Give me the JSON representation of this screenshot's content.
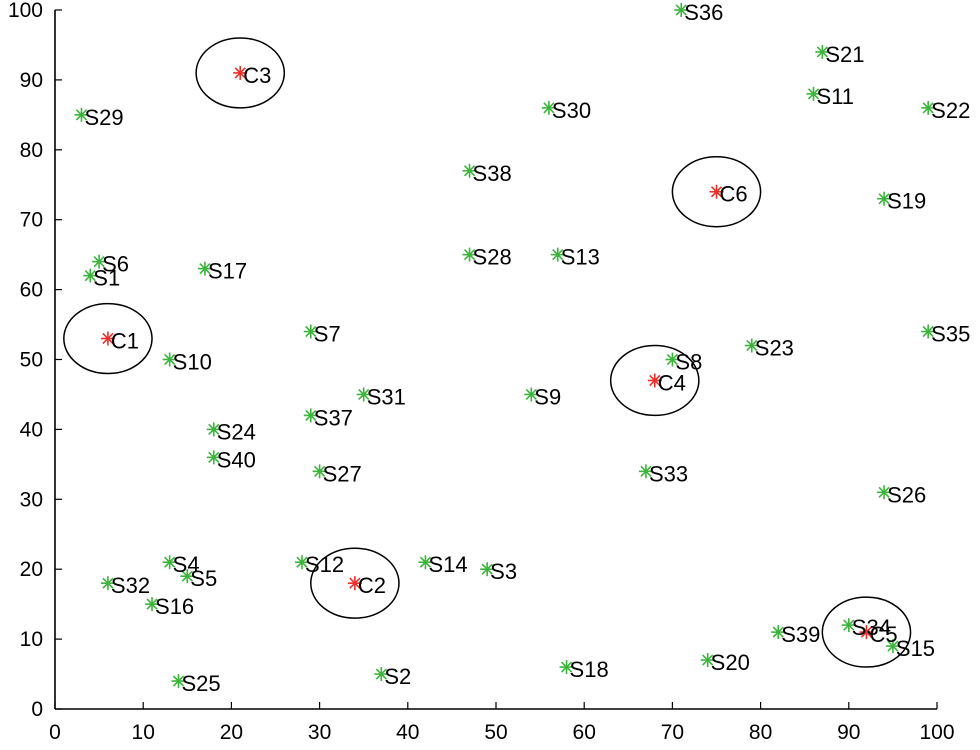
{
  "chart_data": {
    "type": "scatter",
    "title": "",
    "xlabel": "",
    "ylabel": "",
    "xlim": [
      0,
      100
    ],
    "ylim": [
      0,
      100
    ],
    "grid": false,
    "x_ticks": [
      0,
      10,
      20,
      30,
      40,
      50,
      60,
      70,
      80,
      90,
      100
    ],
    "y_ticks": [
      0,
      10,
      20,
      30,
      40,
      50,
      60,
      70,
      80,
      90,
      100
    ],
    "colors": {
      "sensor": "#3cb43c",
      "cluster": "#e8302a",
      "ring": "#000000"
    },
    "series": [
      {
        "name": "sensors",
        "marker": "asterisk",
        "color": "#3cb43c",
        "points": [
          {
            "label": "S1",
            "x": 4,
            "y": 62
          },
          {
            "label": "S2",
            "x": 37,
            "y": 5
          },
          {
            "label": "S3",
            "x": 49,
            "y": 20
          },
          {
            "label": "S4",
            "x": 13,
            "y": 21
          },
          {
            "label": "S5",
            "x": 15,
            "y": 19
          },
          {
            "label": "S6",
            "x": 5,
            "y": 64
          },
          {
            "label": "S7",
            "x": 29,
            "y": 54
          },
          {
            "label": "S8",
            "x": 70,
            "y": 50
          },
          {
            "label": "S9",
            "x": 54,
            "y": 45
          },
          {
            "label": "S10",
            "x": 13,
            "y": 50
          },
          {
            "label": "S11",
            "x": 86,
            "y": 88
          },
          {
            "label": "S12",
            "x": 28,
            "y": 21
          },
          {
            "label": "S13",
            "x": 57,
            "y": 65
          },
          {
            "label": "S14",
            "x": 42,
            "y": 21
          },
          {
            "label": "S15",
            "x": 95,
            "y": 9
          },
          {
            "label": "S16",
            "x": 11,
            "y": 15
          },
          {
            "label": "S17",
            "x": 17,
            "y": 63
          },
          {
            "label": "S18",
            "x": 58,
            "y": 6
          },
          {
            "label": "S19",
            "x": 94,
            "y": 73
          },
          {
            "label": "S20",
            "x": 74,
            "y": 7
          },
          {
            "label": "S21",
            "x": 87,
            "y": 94
          },
          {
            "label": "S22",
            "x": 99,
            "y": 86
          },
          {
            "label": "S23",
            "x": 79,
            "y": 52
          },
          {
            "label": "S24",
            "x": 18,
            "y": 40
          },
          {
            "label": "S25",
            "x": 14,
            "y": 4
          },
          {
            "label": "S26",
            "x": 94,
            "y": 31
          },
          {
            "label": "S27",
            "x": 30,
            "y": 34
          },
          {
            "label": "S28",
            "x": 47,
            "y": 65
          },
          {
            "label": "S29",
            "x": 3,
            "y": 85
          },
          {
            "label": "S30",
            "x": 56,
            "y": 86
          },
          {
            "label": "S31",
            "x": 35,
            "y": 45
          },
          {
            "label": "S32",
            "x": 6,
            "y": 18
          },
          {
            "label": "S33",
            "x": 67,
            "y": 34
          },
          {
            "label": "S34",
            "x": 90,
            "y": 12
          },
          {
            "label": "S35",
            "x": 99,
            "y": 54
          },
          {
            "label": "S36",
            "x": 71,
            "y": 100
          },
          {
            "label": "S37",
            "x": 29,
            "y": 42
          },
          {
            "label": "S38",
            "x": 47,
            "y": 77
          },
          {
            "label": "S39",
            "x": 82,
            "y": 11
          },
          {
            "label": "S40",
            "x": 18,
            "y": 36
          }
        ]
      },
      {
        "name": "clusters",
        "marker": "asterisk-circled",
        "color": "#e8302a",
        "ring_radius": 5,
        "points": [
          {
            "label": "C1",
            "x": 6,
            "y": 53
          },
          {
            "label": "C2",
            "x": 34,
            "y": 18
          },
          {
            "label": "C3",
            "x": 21,
            "y": 91
          },
          {
            "label": "C4",
            "x": 68,
            "y": 47
          },
          {
            "label": "C5",
            "x": 92,
            "y": 11
          },
          {
            "label": "C6",
            "x": 75,
            "y": 74
          }
        ]
      }
    ]
  }
}
